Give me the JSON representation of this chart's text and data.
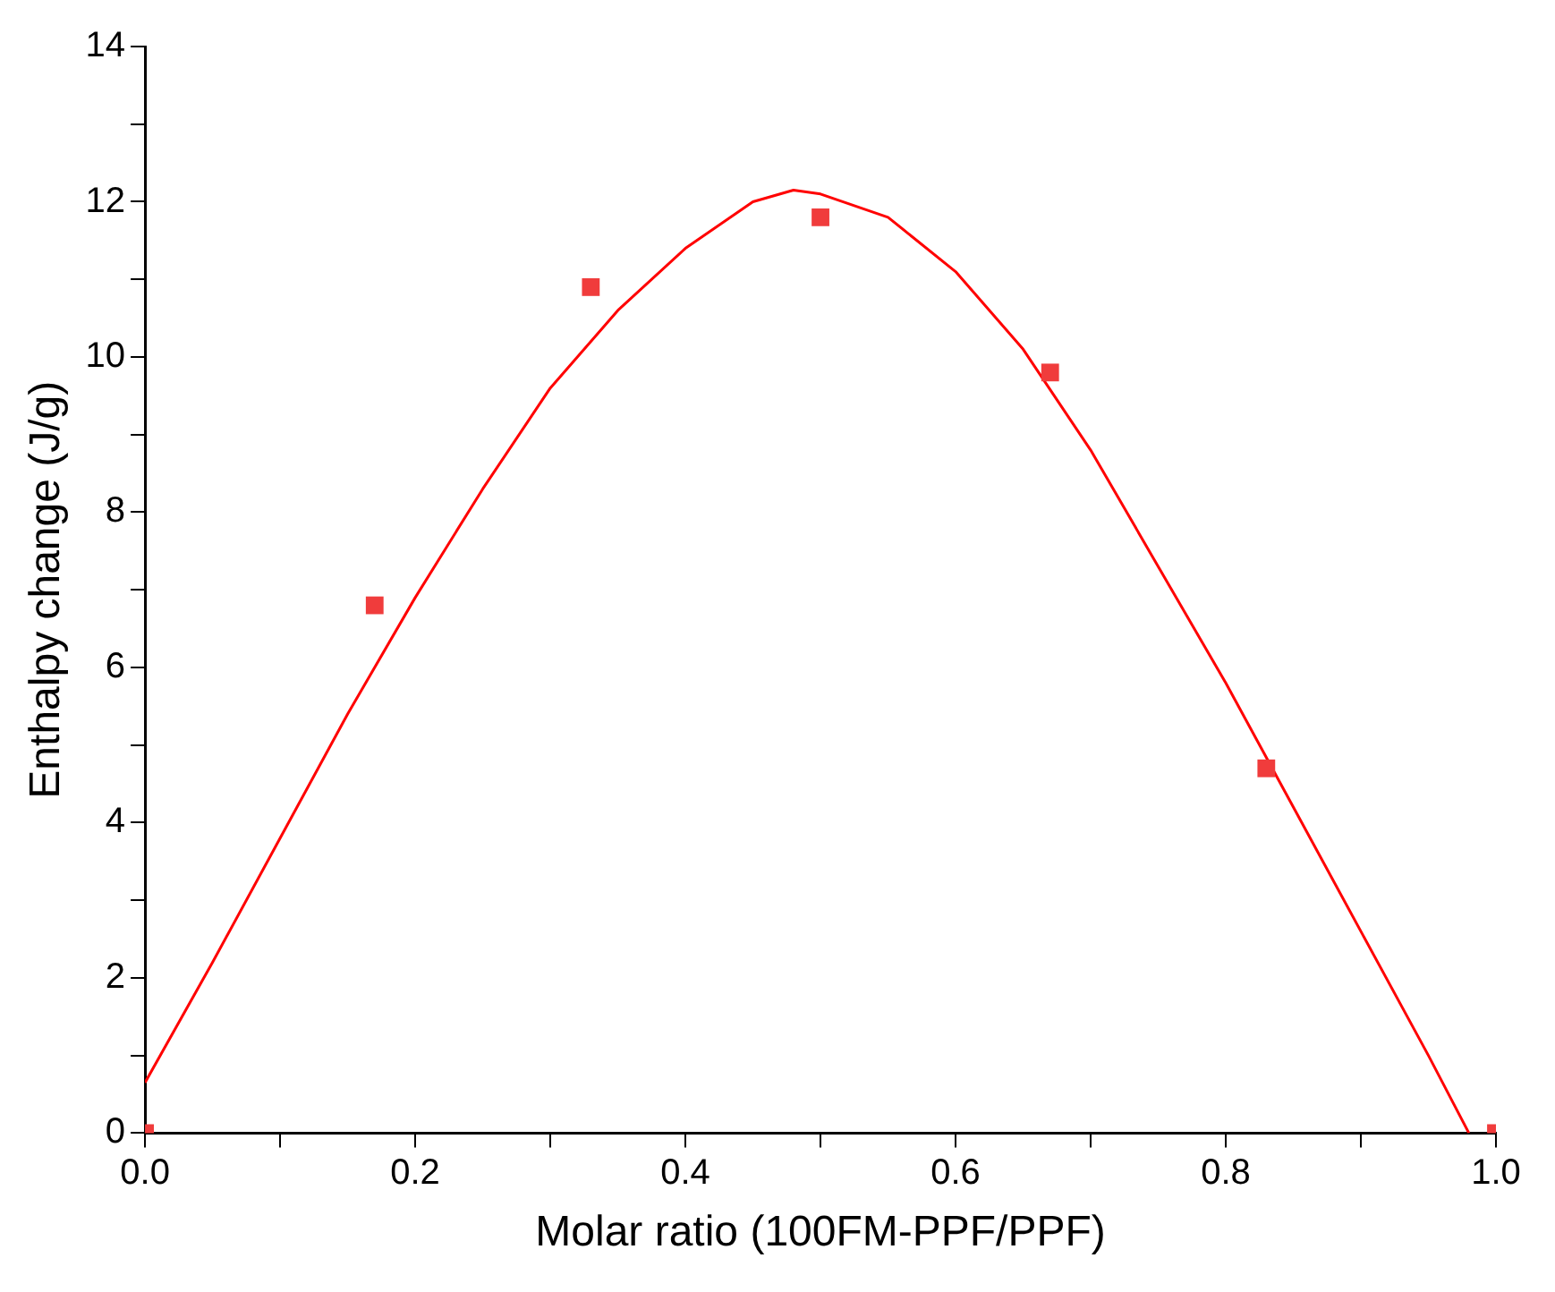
{
  "chart_data": {
    "type": "scatter",
    "xlabel": "Molar ratio (100FM-PPF/PPF)",
    "ylabel": "Enthalpy change (J/g)",
    "xlim": [
      0,
      1
    ],
    "ylim": [
      0,
      14
    ],
    "xticks": [
      {
        "value": 0,
        "label": "0.0"
      },
      {
        "value": 0.1,
        "label": null
      },
      {
        "value": 0.2,
        "label": "0.2"
      },
      {
        "value": 0.3,
        "label": null
      },
      {
        "value": 0.4,
        "label": "0.4"
      },
      {
        "value": 0.5,
        "label": null
      },
      {
        "value": 0.6,
        "label": "0.6"
      },
      {
        "value": 0.7,
        "label": null
      },
      {
        "value": 0.8,
        "label": "0.8"
      },
      {
        "value": 0.9,
        "label": null
      },
      {
        "value": 1,
        "label": "1.0"
      }
    ],
    "yticks": [
      0,
      {
        "value": 1,
        "label": null
      },
      2,
      {
        "value": 3,
        "label": null
      },
      4,
      {
        "value": 5,
        "label": null
      },
      6,
      {
        "value": 7,
        "label": null
      },
      8,
      {
        "value": 9,
        "label": null
      },
      10,
      {
        "value": 11,
        "label": null
      },
      12,
      {
        "value": 13,
        "label": null
      },
      14
    ],
    "grid": false,
    "legend": false,
    "marker": "square",
    "series": [
      {
        "type": "scatter",
        "color": "#f03c3c",
        "x": [
          0,
          0.17,
          0.33,
          0.5,
          0.67,
          0.83,
          1.0
        ],
        "values": [
          0,
          6.8,
          10.9,
          11.8,
          9.8,
          4.7,
          0
        ]
      },
      {
        "type": "line",
        "color": "#ff0000",
        "marker": "none",
        "line_style": "solid",
        "x": [
          0,
          0.05,
          0.1,
          0.15,
          0.2,
          0.25,
          0.3,
          0.35,
          0.4,
          0.45,
          0.48,
          0.5,
          0.55,
          0.6,
          0.65,
          0.7,
          0.75,
          0.8,
          0.85,
          0.9,
          0.95,
          0.98
        ],
        "values": [
          0.65,
          2.2,
          3.8,
          5.4,
          6.9,
          8.3,
          9.6,
          10.6,
          11.4,
          12.0,
          12.15,
          12.1,
          11.8,
          11.1,
          10.1,
          8.8,
          7.3,
          5.8,
          4.2,
          2.6,
          1.0,
          0
        ]
      }
    ]
  }
}
